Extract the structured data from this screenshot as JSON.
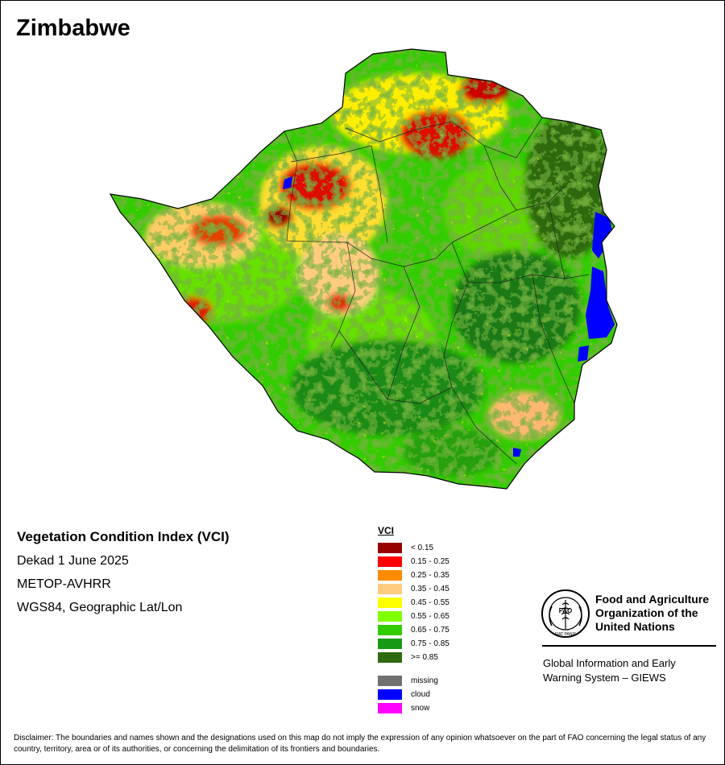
{
  "map": {
    "country": "Zimbabwe",
    "index_title": "Vegetation Condition Index (VCI)",
    "period": "Dekad 1 June 2025",
    "sensor": "METOP-AVHRR",
    "projection": "WGS84, Geographic Lat/Lon"
  },
  "legend": {
    "title": "VCI",
    "classes": [
      {
        "label": "< 0.15",
        "color": "#990000"
      },
      {
        "label": "0.15 - 0.25",
        "color": "#ff0000"
      },
      {
        "label": "0.25 - 0.35",
        "color": "#ff8c00"
      },
      {
        "label": "0.35 - 0.45",
        "color": "#ffcc80"
      },
      {
        "label": "0.45 - 0.55",
        "color": "#ffff00"
      },
      {
        "label": "0.55 - 0.65",
        "color": "#80ff00"
      },
      {
        "label": "0.65 - 0.75",
        "color": "#33cc00"
      },
      {
        "label": "0.75 - 0.85",
        "color": "#169a16"
      },
      {
        "label": ">= 0.85",
        "color": "#2e6b0e"
      }
    ],
    "special": [
      {
        "label": "missing",
        "color": "#707070"
      },
      {
        "label": "cloud",
        "color": "#0000ff"
      },
      {
        "label": "snow",
        "color": "#ff00ff"
      }
    ]
  },
  "organization": {
    "name": "Food and Agriculture\nOrganization of the\nUnited Nations",
    "logo_text": "FAO",
    "motto": "FIAT PANIS",
    "system": "Global Information and Early\nWarning System – GIEWS"
  },
  "disclaimer": "Disclaimer: The boundaries and names shown and the designations used on this map do not imply the expression of any opinion whatsoever on the part of FAO concerning the legal status of any country, territory, area or of its authorities, or concerning the delimitation of its frontiers and boundaries."
}
